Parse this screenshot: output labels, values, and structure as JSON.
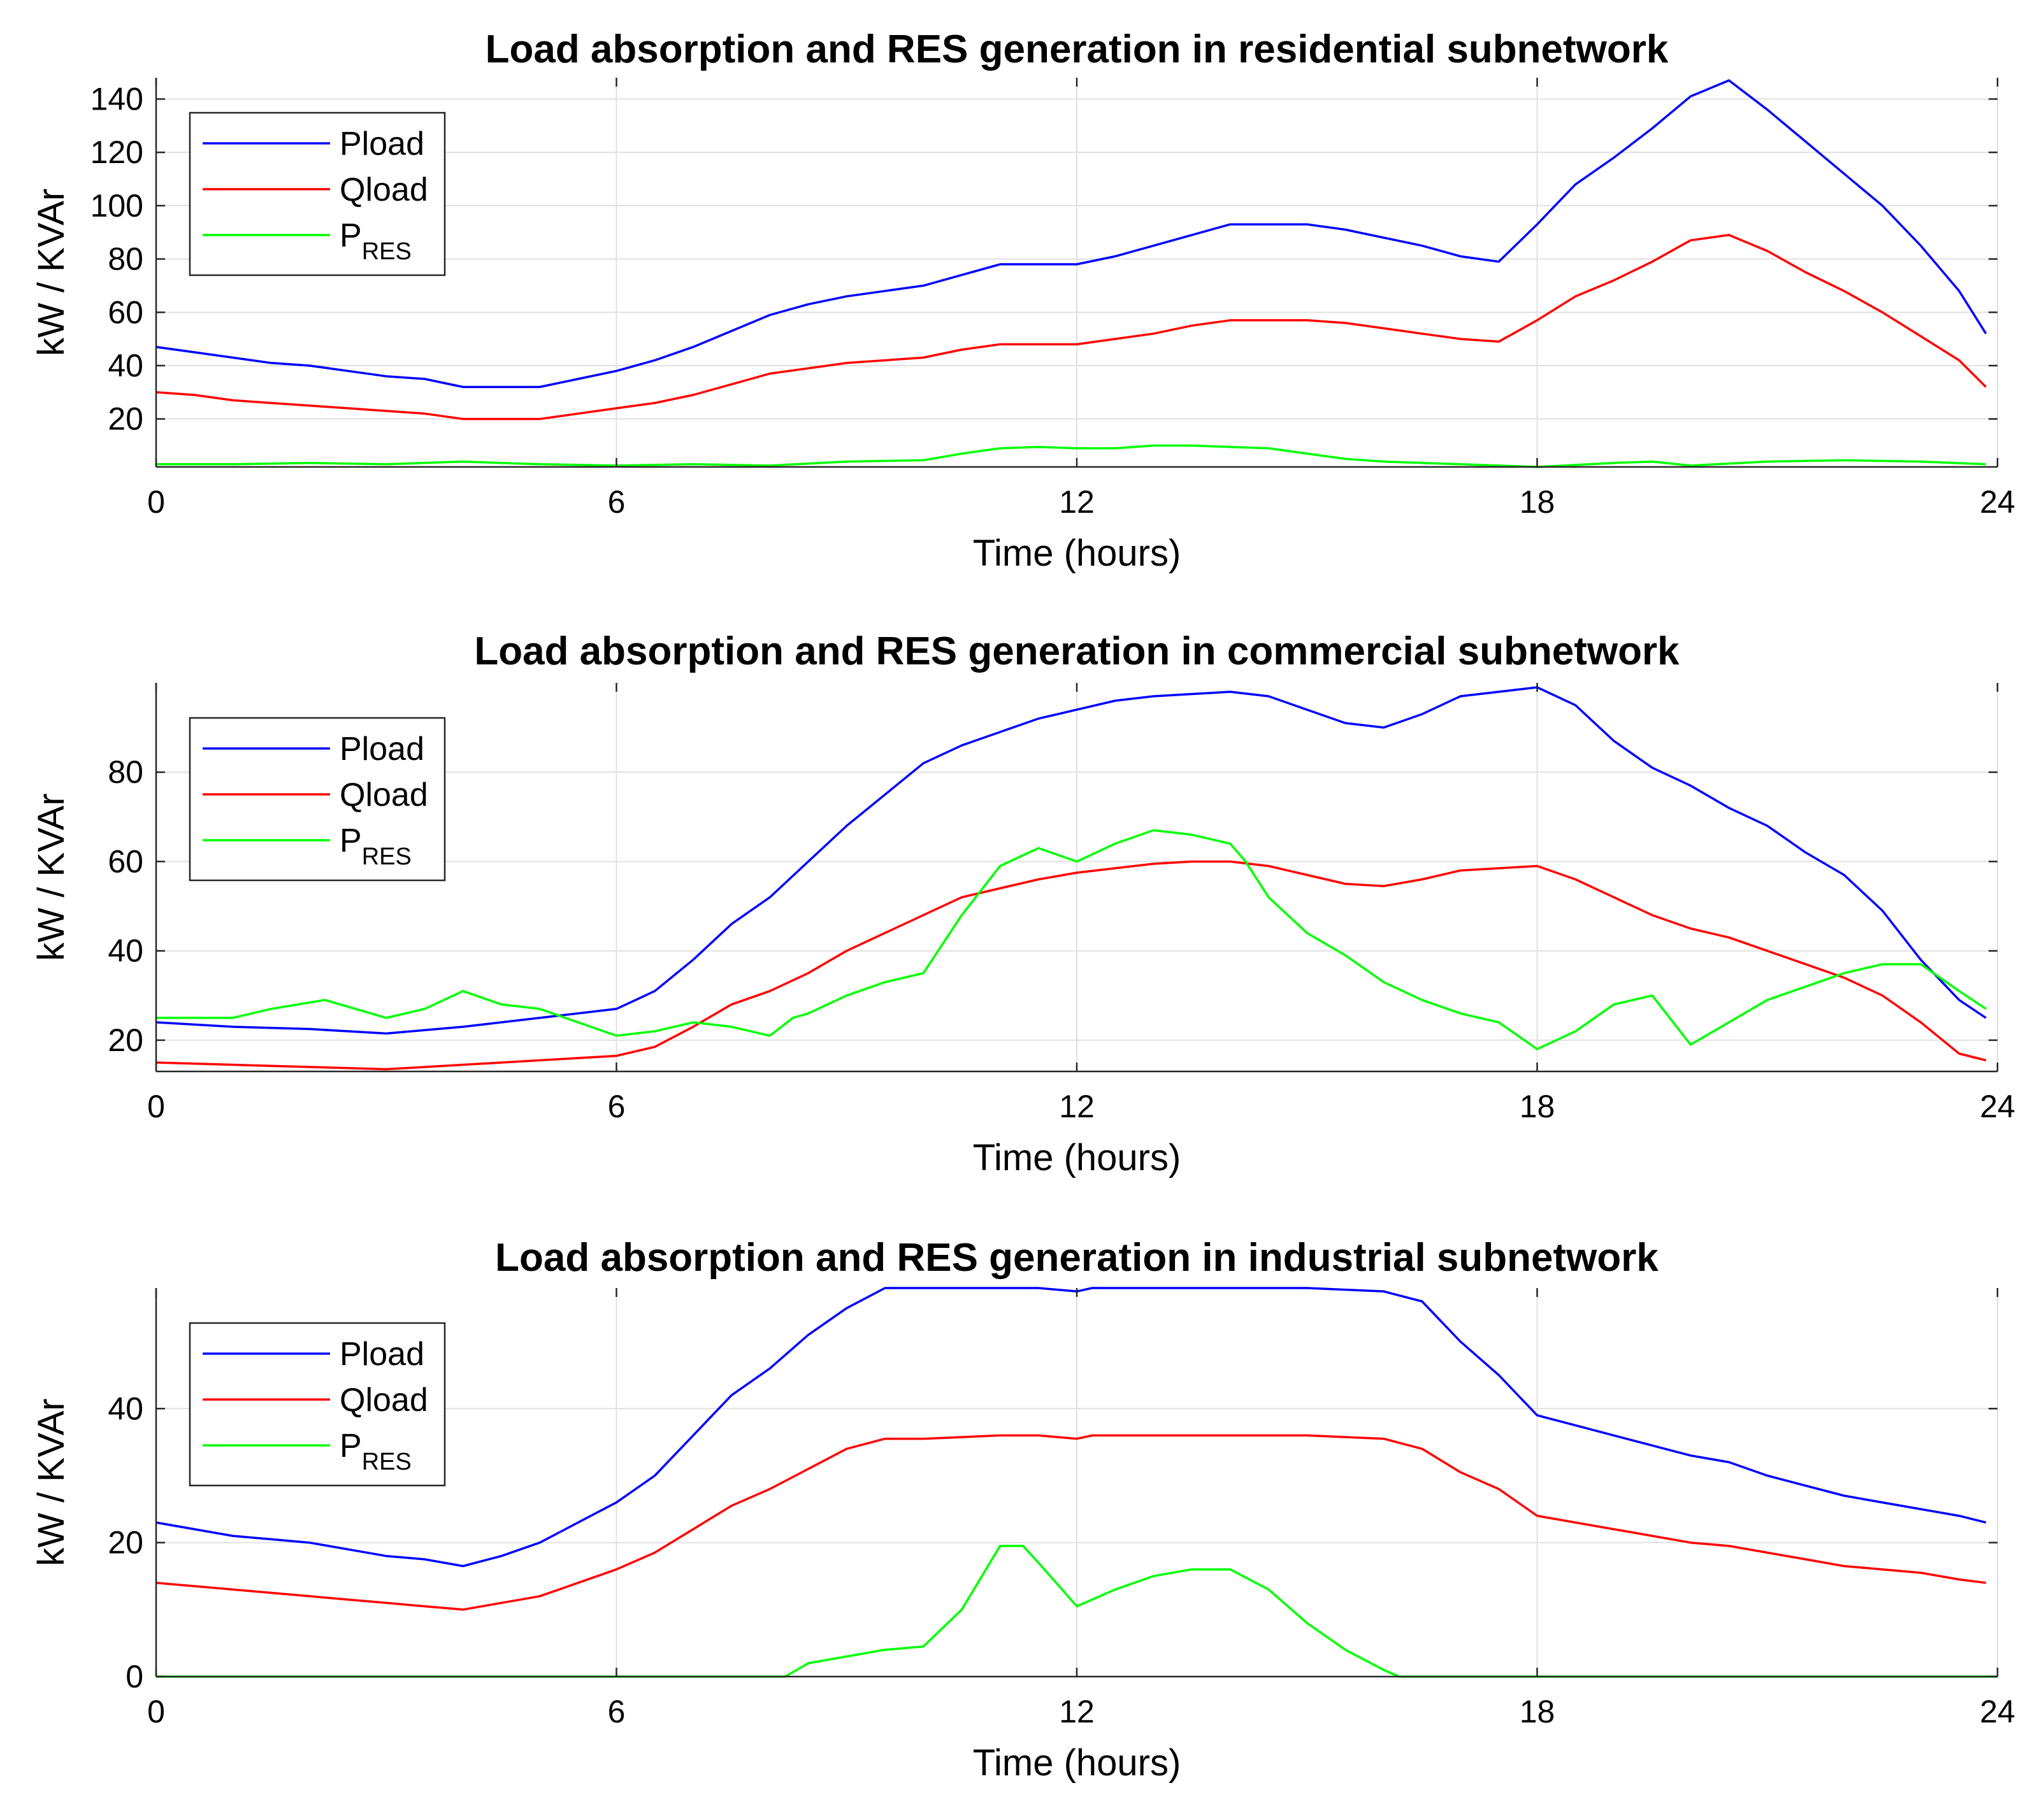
{
  "chart_data": [
    {
      "type": "line",
      "title": "Load absorption and RES generation in residential subnetwork",
      "xlabel": "Time (hours)",
      "ylabel": "kW / KVAr",
      "xlim": [
        0,
        24
      ],
      "ylim": [
        2,
        148
      ],
      "xticks": [
        0,
        6,
        12,
        18,
        24
      ],
      "yticks": [
        20,
        40,
        60,
        80,
        100,
        120,
        140
      ],
      "grid": true,
      "legend": "top-left",
      "series": [
        {
          "name": "Pload",
          "legend_main": "Pload",
          "legend_sub": "",
          "color": "#0000ff",
          "x": [
            0,
            0.5,
            1,
            1.5,
            2,
            2.5,
            3,
            3.5,
            4,
            4.5,
            5,
            5.5,
            6,
            6.5,
            7,
            7.5,
            8,
            8.5,
            9,
            9.5,
            10,
            10.5,
            11,
            11.5,
            12,
            12.5,
            13,
            13.5,
            14,
            14.5,
            15,
            15.5,
            16,
            16.5,
            17,
            17.5,
            18,
            18.5,
            19,
            19.5,
            20,
            20.5,
            21,
            21.5,
            22,
            22.5,
            23,
            23.5,
            23.85
          ],
          "y": [
            47,
            45,
            43,
            41,
            40,
            38,
            36,
            35,
            32,
            32,
            32,
            35,
            38,
            42,
            47,
            53,
            59,
            63,
            66,
            68,
            70,
            74,
            78,
            78,
            78,
            81,
            85,
            89,
            93,
            93,
            93,
            91,
            88,
            85,
            81,
            79,
            93,
            108,
            118,
            129,
            141,
            147,
            136,
            124,
            112,
            100,
            85,
            68,
            52
          ]
        },
        {
          "name": "Qload",
          "legend_main": "Qload",
          "legend_sub": "",
          "color": "#ff0000",
          "x": [
            0,
            0.5,
            1,
            1.5,
            2,
            2.5,
            3,
            3.5,
            4,
            4.5,
            5,
            5.5,
            6,
            6.5,
            7,
            7.5,
            8,
            8.5,
            9,
            9.5,
            10,
            10.5,
            11,
            11.5,
            12,
            12.5,
            13,
            13.5,
            14,
            14.5,
            15,
            15.5,
            16,
            16.5,
            17,
            17.5,
            18,
            18.5,
            19,
            19.5,
            20,
            20.5,
            21,
            21.5,
            22,
            22.5,
            23,
            23.5,
            23.85
          ],
          "y": [
            30,
            29,
            27,
            26,
            25,
            24,
            23,
            22,
            20,
            20,
            20,
            22,
            24,
            26,
            29,
            33,
            37,
            39,
            41,
            42,
            43,
            46,
            48,
            48,
            48,
            50,
            52,
            55,
            57,
            57,
            57,
            56,
            54,
            52,
            50,
            49,
            57,
            66,
            72,
            79,
            87,
            89,
            83,
            75,
            68,
            60,
            51,
            42,
            32
          ]
        },
        {
          "name": "PRES",
          "legend_main": "P",
          "legend_sub": "RES",
          "color": "#00ff00",
          "x": [
            0,
            1,
            2,
            3,
            4,
            5,
            6,
            7,
            8,
            9,
            10,
            10.5,
            11,
            11.5,
            12,
            12.5,
            13,
            13.5,
            14,
            14.5,
            15,
            15.5,
            16,
            17,
            18,
            19,
            19.5,
            20,
            21,
            22,
            23,
            23.85
          ],
          "y": [
            3,
            3,
            3.5,
            3,
            4,
            3,
            2.5,
            3,
            2.5,
            4,
            4.5,
            7,
            9,
            9.5,
            9,
            9,
            10,
            10,
            9.5,
            9,
            7,
            5,
            4,
            3,
            2,
            3.5,
            4,
            2.5,
            4,
            4.5,
            4,
            3
          ]
        }
      ]
    },
    {
      "type": "line",
      "title": "Load absorption and RES generation in commercial subnetwork",
      "xlabel": "Time (hours)",
      "ylabel": "kW / KVAr",
      "xlim": [
        0,
        24
      ],
      "ylim": [
        13,
        100
      ],
      "xticks": [
        0,
        6,
        12,
        18,
        24
      ],
      "yticks": [
        20,
        40,
        60,
        80
      ],
      "grid": true,
      "legend": "top-left",
      "series": [
        {
          "name": "Pload",
          "legend_main": "Pload",
          "legend_sub": "",
          "color": "#0000ff",
          "x": [
            0,
            1,
            2,
            3,
            4,
            5,
            6,
            6.5,
            7,
            7.5,
            8,
            8.5,
            9,
            9.5,
            10,
            10.5,
            11,
            11.5,
            12,
            12.5,
            13,
            13.5,
            14,
            14.5,
            15,
            15.5,
            16,
            16.5,
            17,
            17.5,
            18,
            18.5,
            19,
            19.5,
            20,
            20.5,
            21,
            21.5,
            22,
            22.5,
            23,
            23.5,
            23.85
          ],
          "y": [
            24,
            23,
            22.5,
            21.5,
            23,
            25,
            27,
            31,
            38,
            46,
            52,
            60,
            68,
            75,
            82,
            86,
            89,
            92,
            94,
            96,
            97,
            97.5,
            98,
            97,
            94,
            91,
            90,
            93,
            97,
            98,
            99,
            95,
            87,
            81,
            77,
            72,
            68,
            62,
            57,
            49,
            38,
            29,
            25
          ]
        },
        {
          "name": "Qload",
          "legend_main": "Qload",
          "legend_sub": "",
          "color": "#ff0000",
          "x": [
            0,
            1,
            2,
            3,
            4,
            5,
            6,
            6.5,
            7,
            7.5,
            8,
            8.5,
            9,
            9.5,
            10,
            10.5,
            11,
            11.5,
            12,
            12.5,
            13,
            13.5,
            14,
            14.5,
            15,
            15.5,
            16,
            16.5,
            17,
            17.5,
            18,
            18.5,
            19,
            19.5,
            20,
            20.5,
            21,
            21.5,
            22,
            22.5,
            23,
            23.5,
            23.85
          ],
          "y": [
            15,
            14.5,
            14,
            13.5,
            14.5,
            15.5,
            16.5,
            18.5,
            23,
            28,
            31,
            35,
            40,
            44,
            48,
            52,
            54,
            56,
            57.5,
            58.5,
            59.5,
            60,
            60,
            59,
            57,
            55,
            54.5,
            56,
            58,
            58.5,
            59,
            56,
            52,
            48,
            45,
            43,
            40,
            37,
            34,
            30,
            24,
            17,
            15.5
          ]
        },
        {
          "name": "PRES",
          "legend_main": "P",
          "legend_sub": "RES",
          "color": "#00ff00",
          "x": [
            0,
            1,
            1.5,
            2.2,
            3,
            3.5,
            4,
            4.5,
            5,
            5.5,
            6,
            6.5,
            7,
            7.5,
            8,
            8.3,
            8.5,
            9,
            9.5,
            10,
            10.5,
            11,
            11.5,
            12,
            12.5,
            13,
            13.5,
            14,
            14.2,
            14.5,
            15,
            15.5,
            16,
            16.5,
            17,
            17.5,
            18,
            18.5,
            19,
            19.5,
            20,
            20.5,
            21,
            21.5,
            22,
            22.5,
            23,
            23.5,
            23.85
          ],
          "y": [
            25,
            25,
            27,
            29,
            25,
            27,
            31,
            28,
            27,
            24,
            21,
            22,
            24,
            23,
            21,
            25,
            26,
            30,
            33,
            35,
            48,
            59,
            63,
            60,
            64,
            67,
            66,
            64,
            60,
            52,
            44,
            39,
            33,
            29,
            26,
            24,
            18,
            22,
            28,
            30,
            19,
            24,
            29,
            32,
            35,
            37,
            37,
            31,
            27
          ]
        }
      ]
    },
    {
      "type": "line",
      "title": "Load absorption and RES generation in industrial subnetwork",
      "xlabel": "Time (hours)",
      "ylabel": "kW / KVAr",
      "xlim": [
        0,
        24
      ],
      "ylim": [
        0,
        58
      ],
      "xticks": [
        0,
        6,
        12,
        18,
        24
      ],
      "yticks": [
        0,
        20,
        40
      ],
      "grid": true,
      "legend": "top-left",
      "series": [
        {
          "name": "Pload",
          "legend_main": "Pload",
          "legend_sub": "",
          "color": "#0000ff",
          "x": [
            0,
            0.5,
            1,
            1.5,
            2,
            2.5,
            3,
            3.5,
            4,
            4.5,
            5,
            5.5,
            6,
            6.5,
            7,
            7.5,
            8,
            8.5,
            9,
            9.5,
            10,
            11,
            11.5,
            12,
            12.2,
            13,
            14,
            15,
            16,
            16.5,
            17,
            17.5,
            18,
            18.5,
            19,
            19.5,
            20,
            20.5,
            21,
            21.5,
            22,
            22.5,
            23,
            23.5,
            23.85
          ],
          "y": [
            23,
            22,
            21,
            20.5,
            20,
            19,
            18,
            17.5,
            16.5,
            18,
            20,
            23,
            26,
            30,
            36,
            42,
            46,
            51,
            55,
            58,
            58,
            58,
            58,
            57.5,
            58,
            58,
            58,
            58,
            57.5,
            56,
            50,
            45,
            39,
            37.5,
            36,
            34.5,
            33,
            32,
            30,
            28.5,
            27,
            26,
            25,
            24,
            23
          ]
        },
        {
          "name": "Qload",
          "legend_main": "Qload",
          "legend_sub": "",
          "color": "#ff0000",
          "x": [
            0,
            0.5,
            1,
            1.5,
            2,
            2.5,
            3,
            3.5,
            4,
            4.5,
            5,
            5.5,
            6,
            6.5,
            7,
            7.5,
            8,
            8.5,
            9,
            9.5,
            10,
            11,
            11.5,
            12,
            12.2,
            13,
            14,
            15,
            16,
            16.5,
            17,
            17.5,
            18,
            18.5,
            19,
            19.5,
            20,
            20.5,
            21,
            21.5,
            22,
            22.5,
            23,
            23.5,
            23.85
          ],
          "y": [
            14,
            13.5,
            13,
            12.5,
            12,
            11.5,
            11,
            10.5,
            10,
            11,
            12,
            14,
            16,
            18.5,
            22,
            25.5,
            28,
            31,
            34,
            35.5,
            35.5,
            36,
            36,
            35.5,
            36,
            36,
            36,
            36,
            35.5,
            34,
            30.5,
            28,
            24,
            23,
            22,
            21,
            20,
            19.5,
            18.5,
            17.5,
            16.5,
            16,
            15.5,
            14.5,
            14
          ]
        },
        {
          "name": "PRES",
          "legend_main": "P",
          "legend_sub": "RES",
          "color": "#00ff00",
          "x": [
            0,
            8.2,
            8.5,
            9,
            9.5,
            10,
            10.5,
            11,
            11.3,
            11.5,
            12,
            12.5,
            13,
            13.5,
            14,
            14.5,
            15,
            15.5,
            16,
            16.2,
            24
          ],
          "y": [
            0,
            0,
            2,
            3,
            4,
            4.5,
            10,
            19.5,
            19.5,
            17,
            10.5,
            13,
            15,
            16,
            16,
            13,
            8,
            4,
            1,
            0,
            0
          ]
        }
      ]
    }
  ]
}
